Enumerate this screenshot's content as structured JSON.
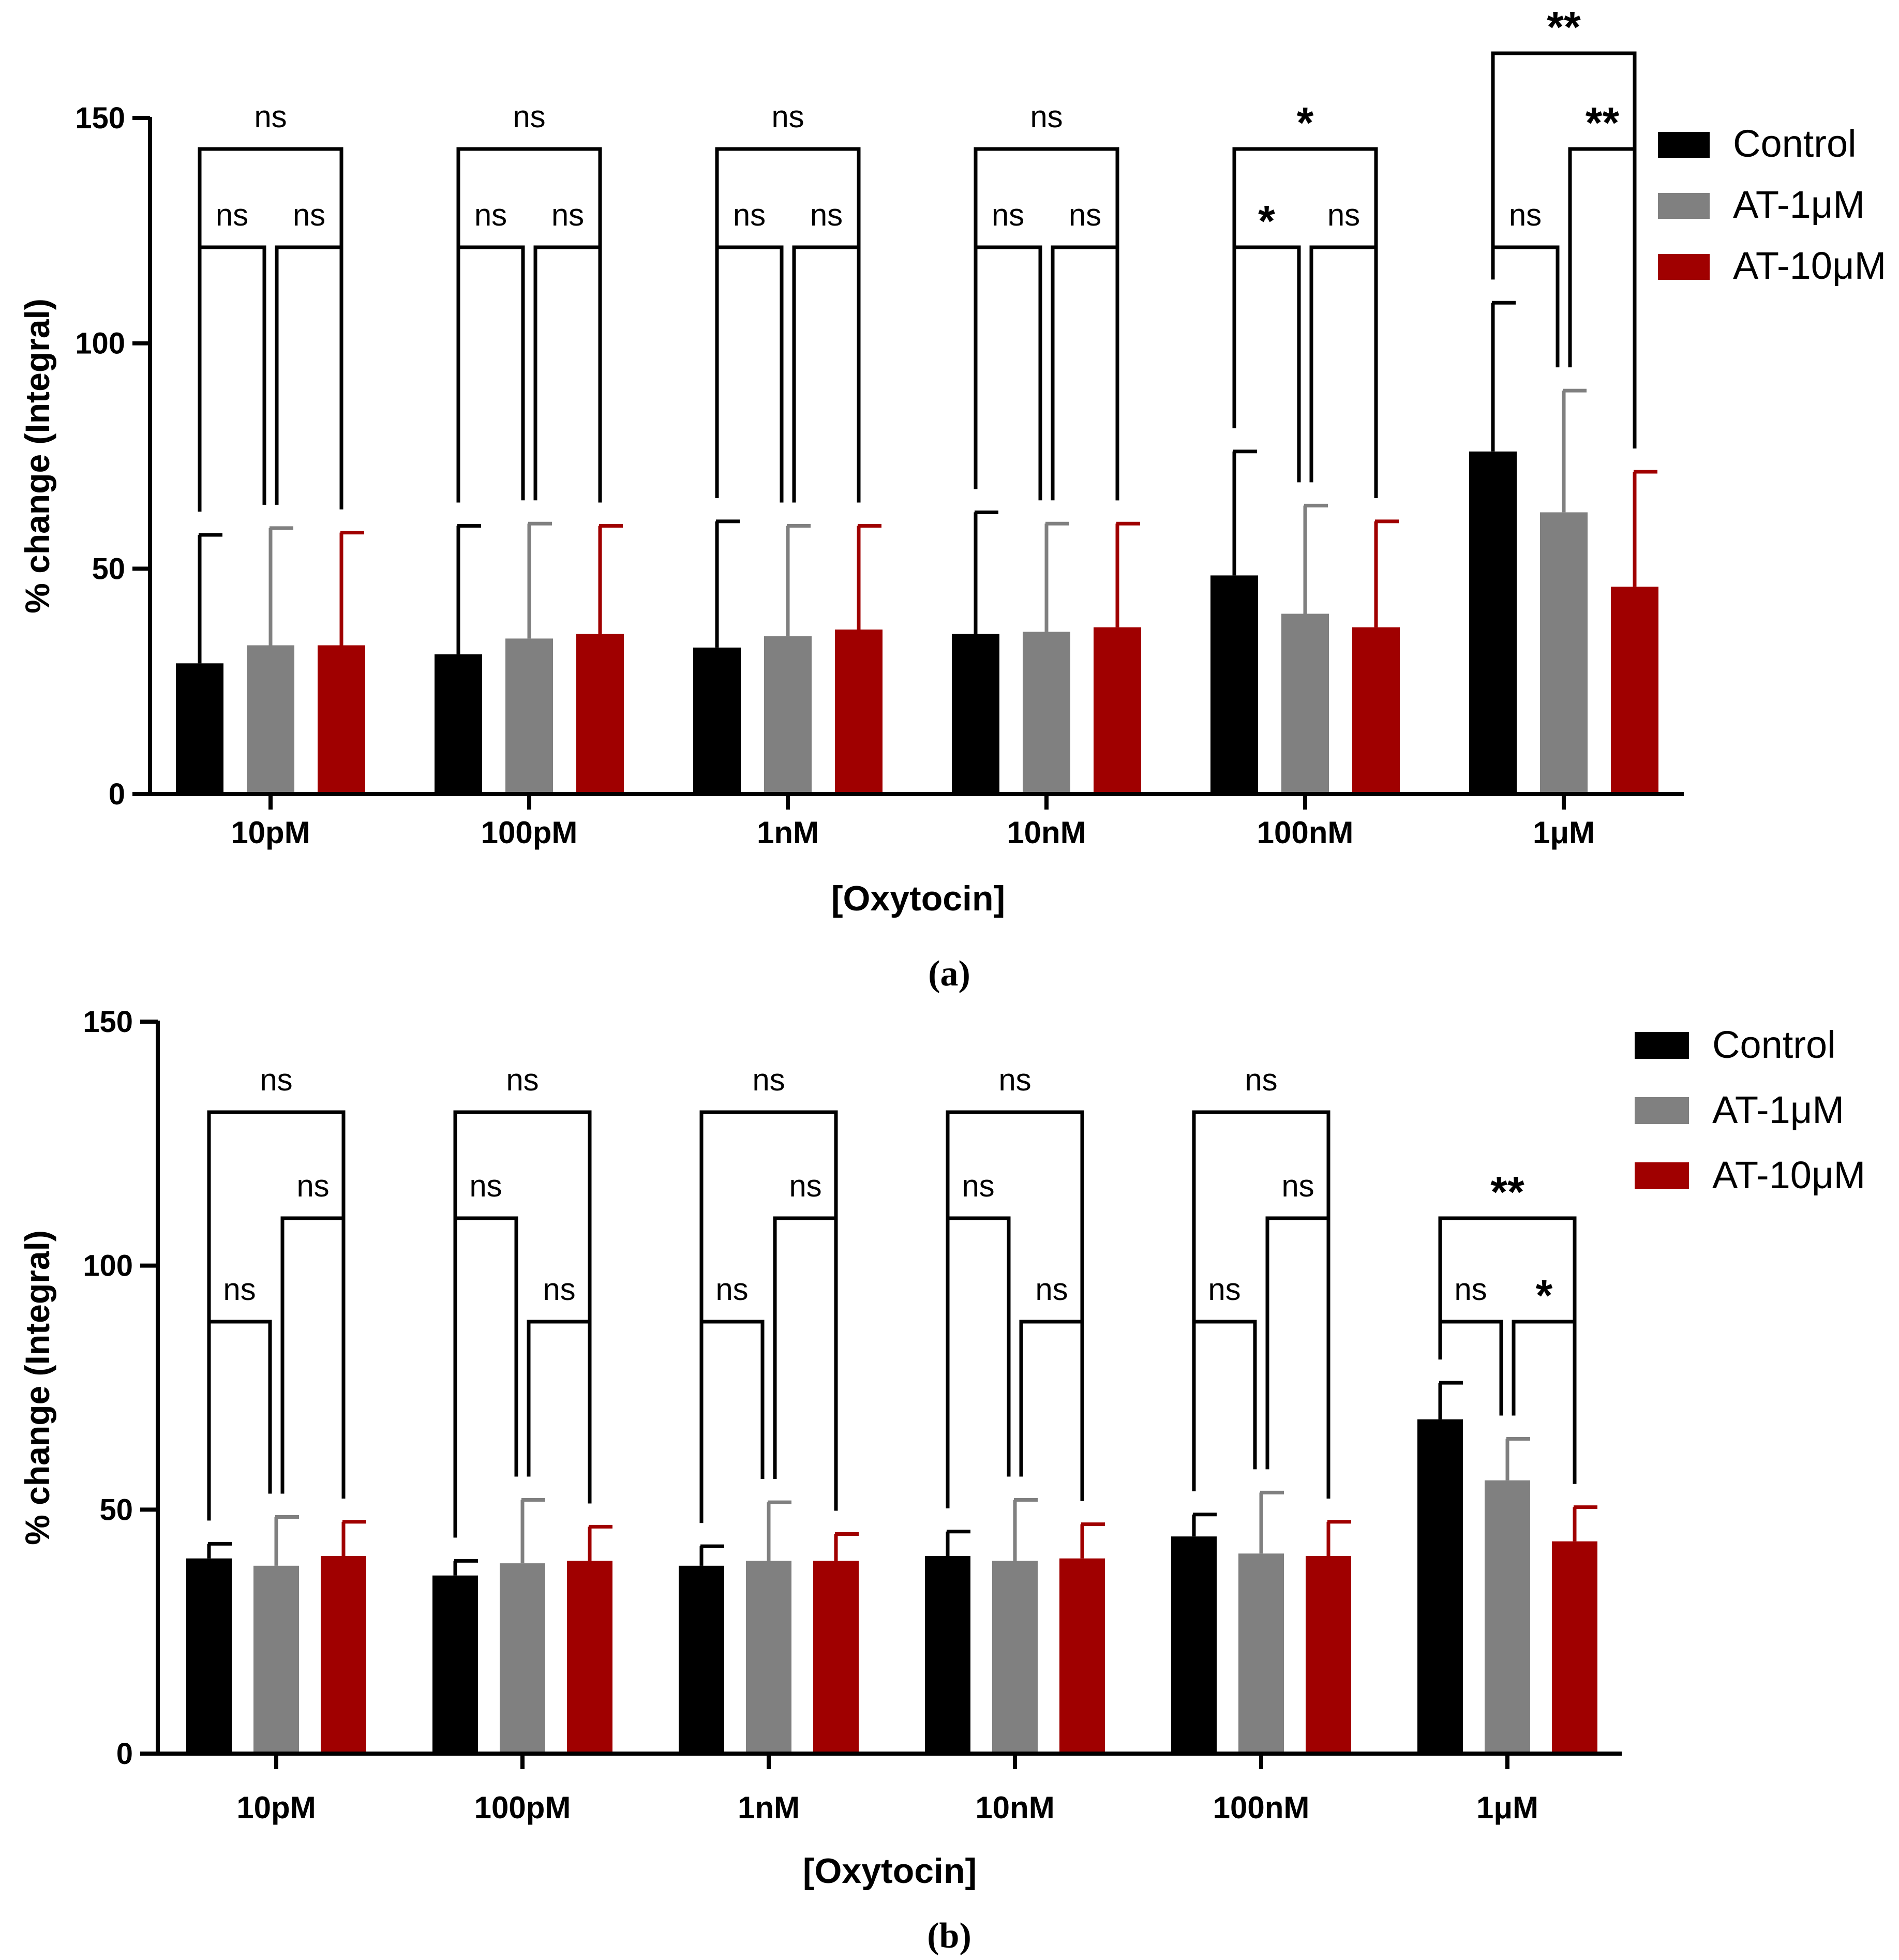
{
  "colors": {
    "control": "#000000",
    "at1": "#808080",
    "at10": "#a00000",
    "axis": "#000000",
    "text": "#000000"
  },
  "chart_data": [
    {
      "panel_label": "(a)",
      "type": "bar",
      "xlabel": "[Oxytocin]",
      "ylabel": "% change (Integral)",
      "ylim": [
        0,
        150
      ],
      "yticks": [
        "0",
        "50",
        "100",
        "150"
      ],
      "categories": [
        "10pM",
        "100pM",
        "1nM",
        "10nM",
        "100nM",
        "1μM"
      ],
      "legend": {
        "position": "top-right",
        "entries": [
          "Control",
          "AT-1μM",
          "AT-10μM"
        ]
      },
      "series": [
        {
          "name": "Control",
          "values": [
            29,
            31,
            32.5,
            35.5,
            48.5,
            76
          ],
          "errors": [
            28.5,
            28.5,
            28,
            27,
            27.5,
            33
          ]
        },
        {
          "name": "AT-1μM",
          "values": [
            33,
            34.5,
            35,
            36,
            40,
            62.5
          ],
          "errors": [
            26,
            25.5,
            24.5,
            24,
            24,
            27
          ]
        },
        {
          "name": "AT-10μM",
          "values": [
            33,
            35.5,
            36.5,
            37,
            37,
            46
          ],
          "errors": [
            25,
            24,
            23,
            23,
            23.5,
            25.5
          ]
        }
      ],
      "comparisons": [
        {
          "category": 0,
          "pair": "0-1",
          "label": "ns",
          "tier": 0
        },
        {
          "category": 0,
          "pair": "1-2",
          "label": "ns",
          "tier": 0
        },
        {
          "category": 0,
          "pair": "0-2",
          "label": "ns",
          "tier": 1
        },
        {
          "category": 1,
          "pair": "0-1",
          "label": "ns",
          "tier": 0
        },
        {
          "category": 1,
          "pair": "1-2",
          "label": "ns",
          "tier": 0
        },
        {
          "category": 1,
          "pair": "0-2",
          "label": "ns",
          "tier": 1
        },
        {
          "category": 2,
          "pair": "0-1",
          "label": "ns",
          "tier": 0
        },
        {
          "category": 2,
          "pair": "1-2",
          "label": "ns",
          "tier": 0
        },
        {
          "category": 2,
          "pair": "0-2",
          "label": "ns",
          "tier": 1
        },
        {
          "category": 3,
          "pair": "0-1",
          "label": "ns",
          "tier": 0
        },
        {
          "category": 3,
          "pair": "1-2",
          "label": "ns",
          "tier": 0
        },
        {
          "category": 3,
          "pair": "0-2",
          "label": "ns",
          "tier": 1
        },
        {
          "category": 4,
          "pair": "0-1",
          "label": "*",
          "tier": 0
        },
        {
          "category": 4,
          "pair": "1-2",
          "label": "ns",
          "tier": 0
        },
        {
          "category": 4,
          "pair": "0-2",
          "label": "*",
          "tier": 1
        },
        {
          "category": 5,
          "pair": "0-1",
          "label": "ns",
          "tier": 0
        },
        {
          "category": 5,
          "pair": "1-2",
          "label": "**",
          "tier": 1
        },
        {
          "category": 5,
          "pair": "0-2",
          "label": "**",
          "tier": 2
        }
      ]
    },
    {
      "panel_label": "(b)",
      "type": "bar",
      "xlabel": "[Oxytocin]",
      "ylabel": "% change (Integral)",
      "ylim": [
        0,
        150
      ],
      "yticks": [
        "0",
        "50",
        "100",
        "150"
      ],
      "categories": [
        "10pM",
        "100pM",
        "1nM",
        "10nM",
        "100nM",
        "1μM"
      ],
      "legend": {
        "position": "top-right",
        "entries": [
          "Control",
          "AT-1μM",
          "AT-10μM"
        ]
      },
      "series": [
        {
          "name": "Control",
          "values": [
            40,
            36.5,
            38.5,
            40.5,
            44.5,
            68.5
          ],
          "errors": [
            3,
            3,
            4,
            5,
            4.5,
            7.5
          ]
        },
        {
          "name": "AT-1μM",
          "values": [
            38.5,
            39,
            39.5,
            39.5,
            41,
            56
          ],
          "errors": [
            10,
            13,
            12,
            12.5,
            12.5,
            8.5
          ]
        },
        {
          "name": "AT-10μM",
          "values": [
            40.5,
            39.5,
            39.5,
            40,
            40.5,
            43.5
          ],
          "errors": [
            7,
            7,
            5.5,
            7,
            7,
            7
          ]
        }
      ],
      "comparisons": [
        {
          "category": 0,
          "pair": "0-1",
          "label": "ns",
          "tier": 0
        },
        {
          "category": 0,
          "pair": "1-2",
          "label": "ns",
          "tier": 1
        },
        {
          "category": 0,
          "pair": "0-2",
          "label": "ns",
          "tier": 2
        },
        {
          "category": 1,
          "pair": "1-2",
          "label": "ns",
          "tier": 0
        },
        {
          "category": 1,
          "pair": "0-1",
          "label": "ns",
          "tier": 1
        },
        {
          "category": 1,
          "pair": "0-2",
          "label": "ns",
          "tier": 2
        },
        {
          "category": 2,
          "pair": "0-1",
          "label": "ns",
          "tier": 0
        },
        {
          "category": 2,
          "pair": "1-2",
          "label": "ns",
          "tier": 1
        },
        {
          "category": 2,
          "pair": "0-2",
          "label": "ns",
          "tier": 2
        },
        {
          "category": 3,
          "pair": "1-2",
          "label": "ns",
          "tier": 0
        },
        {
          "category": 3,
          "pair": "0-1",
          "label": "ns",
          "tier": 1
        },
        {
          "category": 3,
          "pair": "0-2",
          "label": "ns",
          "tier": 2
        },
        {
          "category": 4,
          "pair": "0-1",
          "label": "ns",
          "tier": 0
        },
        {
          "category": 4,
          "pair": "1-2",
          "label": "ns",
          "tier": 1
        },
        {
          "category": 4,
          "pair": "0-2",
          "label": "ns",
          "tier": 2
        },
        {
          "category": 5,
          "pair": "0-1",
          "label": "ns",
          "tier": 0
        },
        {
          "category": 5,
          "pair": "1-2",
          "label": "*",
          "tier": 0
        },
        {
          "category": 5,
          "pair": "0-2",
          "label": "**",
          "tier": 1
        }
      ]
    }
  ]
}
